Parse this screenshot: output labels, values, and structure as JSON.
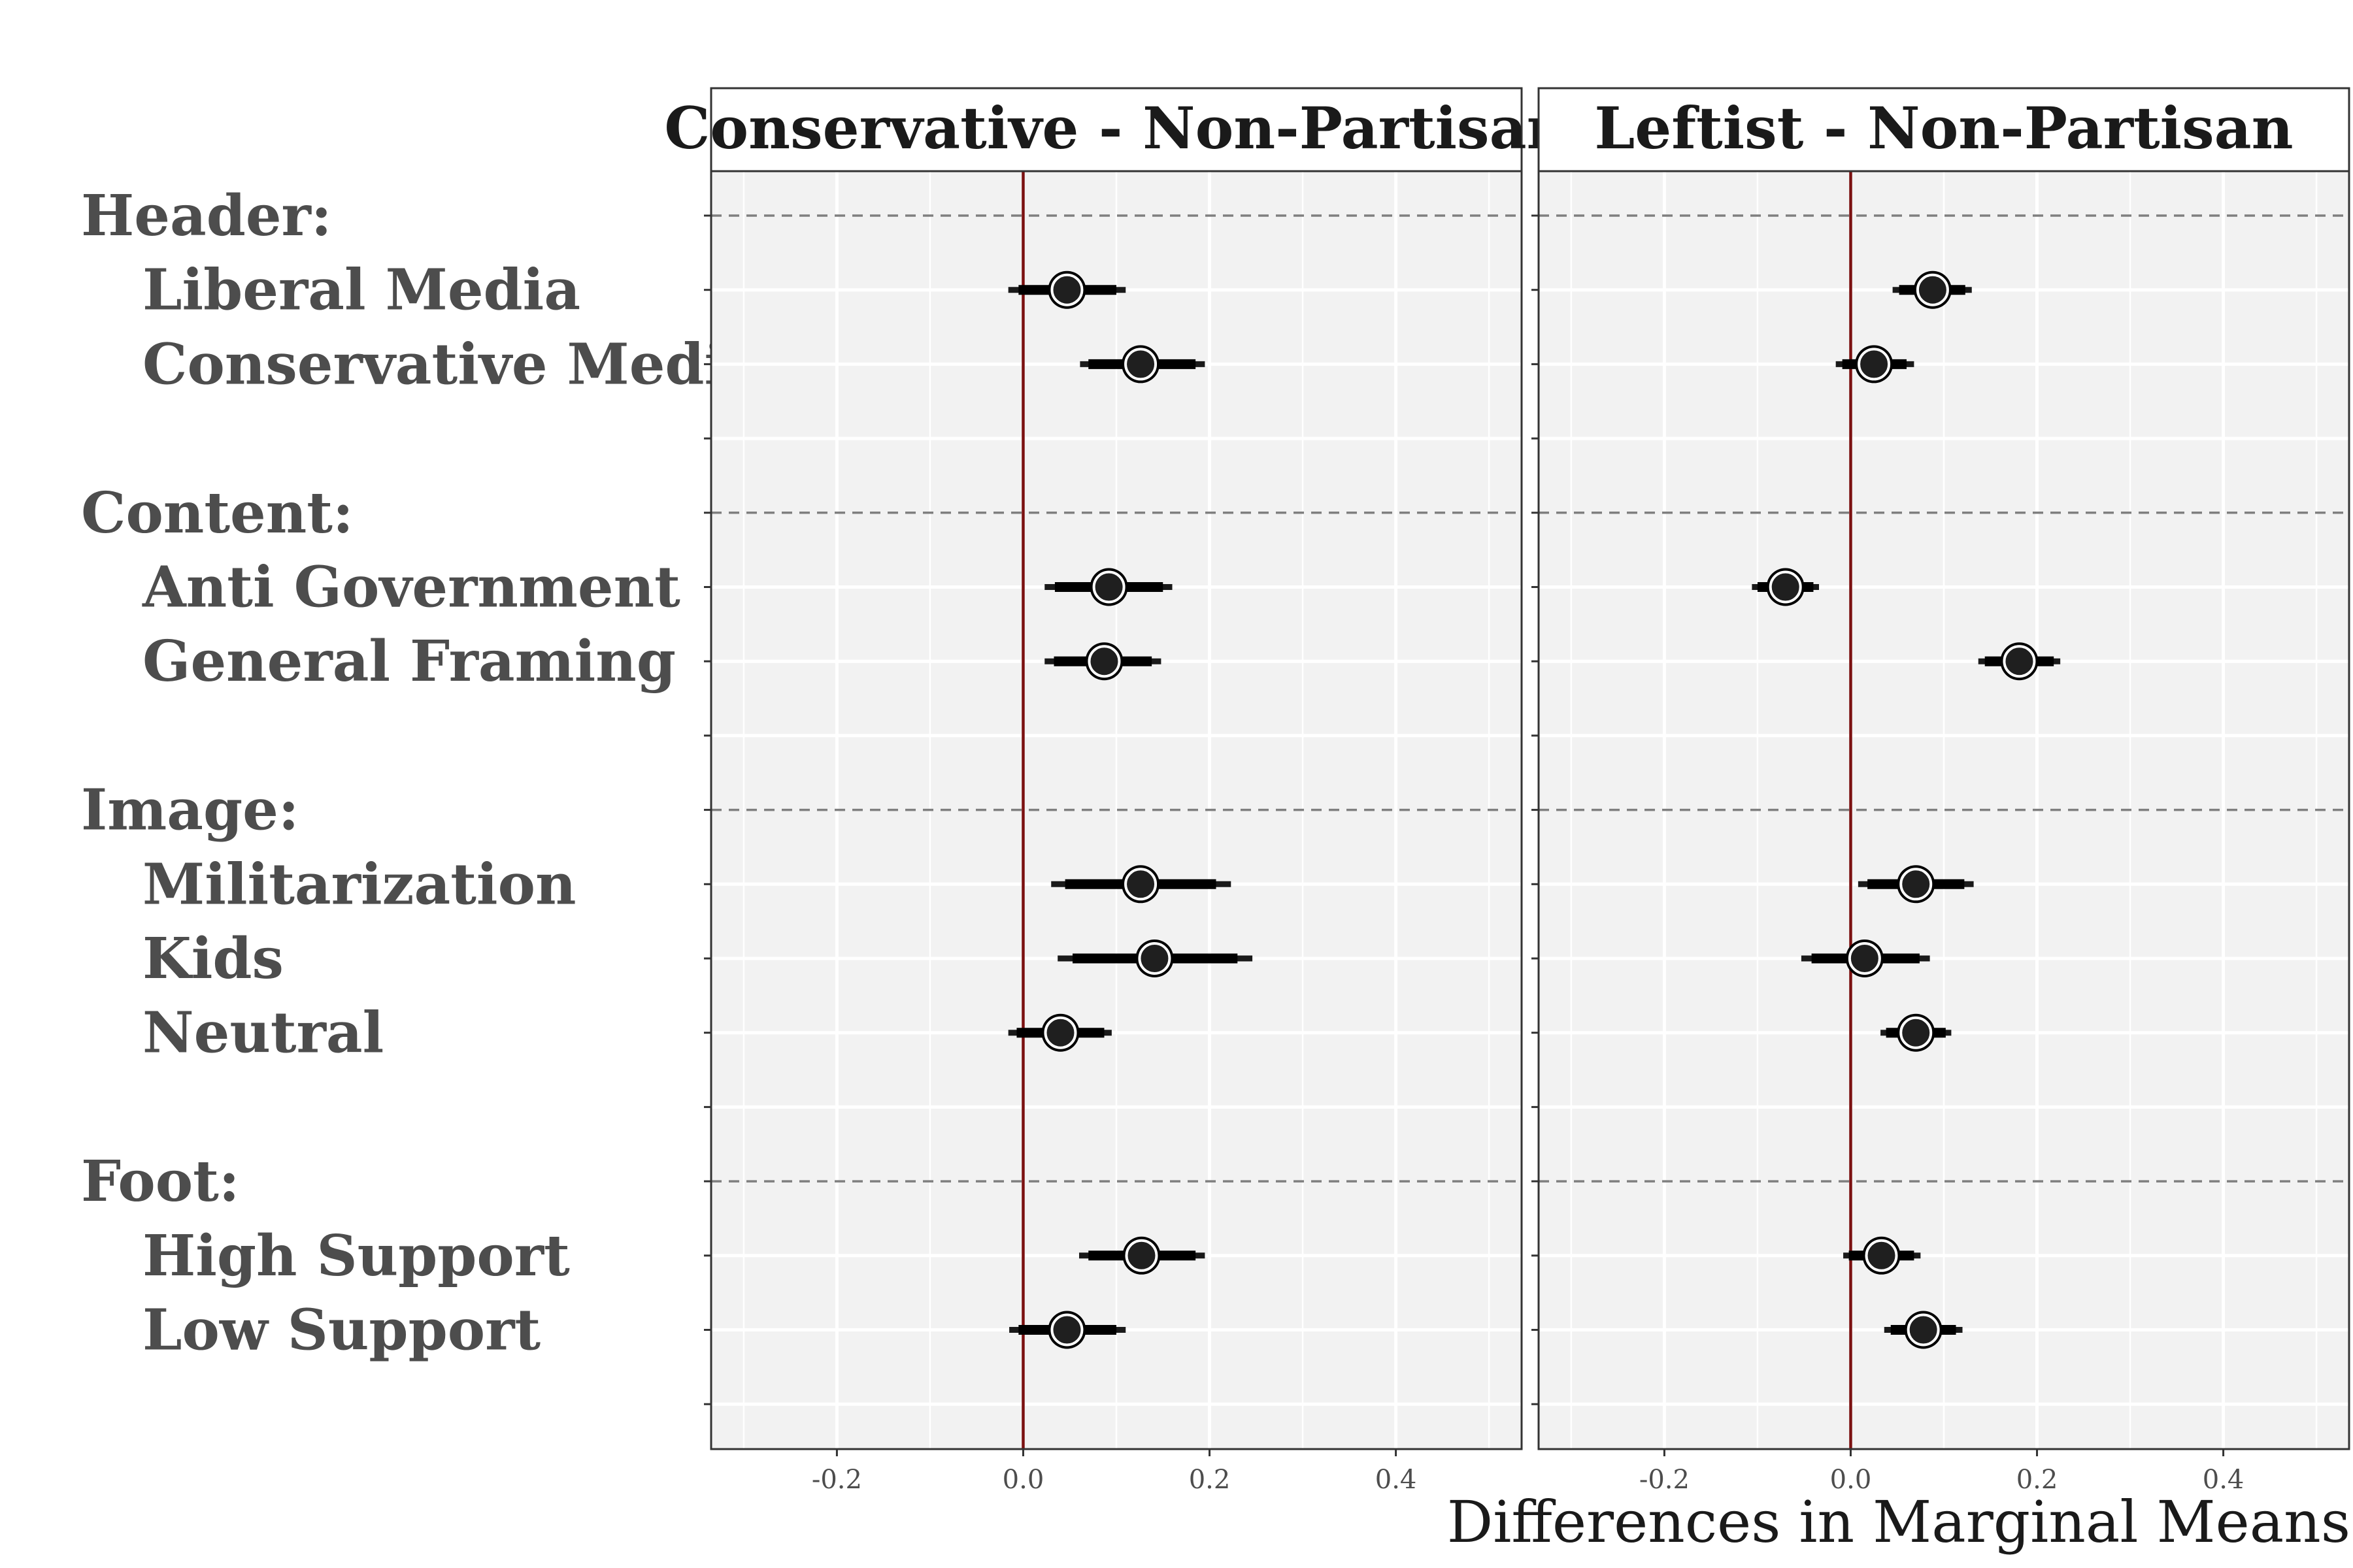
{
  "chart_data": {
    "type": "scatter",
    "xlabel": "Differences in Marginal Means",
    "xlim": [
      -0.335,
      0.535
    ],
    "x_ticks": [
      "-0.2",
      "0.0",
      "0.2",
      "0.4"
    ],
    "x_tick_values": [
      -0.2,
      0.0,
      0.2,
      0.4
    ],
    "reference_line": 0,
    "rows": [
      {
        "label": "Header:",
        "kind": "group"
      },
      {
        "label": "Liberal Media",
        "kind": "level"
      },
      {
        "label": "Conservative Media",
        "kind": "level"
      },
      {
        "label": "",
        "kind": "spacer"
      },
      {
        "label": "Content:",
        "kind": "group"
      },
      {
        "label": "Anti Government",
        "kind": "level"
      },
      {
        "label": "General Framing",
        "kind": "level"
      },
      {
        "label": "",
        "kind": "spacer"
      },
      {
        "label": "Image:",
        "kind": "group"
      },
      {
        "label": "Militarization",
        "kind": "level"
      },
      {
        "label": "Kids",
        "kind": "level"
      },
      {
        "label": "Neutral",
        "kind": "level"
      },
      {
        "label": "",
        "kind": "spacer"
      },
      {
        "label": "Foot:",
        "kind": "group"
      },
      {
        "label": "High Support",
        "kind": "level"
      },
      {
        "label": "Low Support",
        "kind": "level"
      },
      {
        "label": "",
        "kind": "spacer"
      }
    ],
    "panels": [
      {
        "title": "Conservative - Non-Partisan",
        "estimates": [
          {
            "label": "Liberal Media",
            "estimate": 0.047,
            "ci95": [
              -0.016,
              0.11
            ],
            "ci90": [
              -0.005,
              0.1
            ]
          },
          {
            "label": "Conservative Media",
            "estimate": 0.126,
            "ci95": [
              0.061,
              0.195
            ],
            "ci90": [
              0.07,
              0.185
            ]
          },
          {
            "label": "Anti Government",
            "estimate": 0.092,
            "ci95": [
              0.023,
              0.16
            ],
            "ci90": [
              0.034,
              0.15
            ]
          },
          {
            "label": "General Framing",
            "estimate": 0.087,
            "ci95": [
              0.023,
              0.148
            ],
            "ci90": [
              0.033,
              0.138
            ]
          },
          {
            "label": "Militarization",
            "estimate": 0.126,
            "ci95": [
              0.03,
              0.223
            ],
            "ci90": [
              0.045,
              0.207
            ]
          },
          {
            "label": "Kids",
            "estimate": 0.141,
            "ci95": [
              0.037,
              0.246
            ],
            "ci90": [
              0.053,
              0.23
            ]
          },
          {
            "label": "Neutral",
            "estimate": 0.04,
            "ci95": [
              -0.016,
              0.095
            ],
            "ci90": [
              -0.007,
              0.087
            ]
          },
          {
            "label": "High Support",
            "estimate": 0.127,
            "ci95": [
              0.06,
              0.195
            ],
            "ci90": [
              0.07,
              0.185
            ]
          },
          {
            "label": "Low Support",
            "estimate": 0.047,
            "ci95": [
              -0.015,
              0.11
            ],
            "ci90": [
              -0.005,
              0.1
            ]
          }
        ]
      },
      {
        "title": "Leftist - Non-Partisan",
        "estimates": [
          {
            "label": "Liberal Media",
            "estimate": 0.088,
            "ci95": [
              0.045,
              0.13
            ],
            "ci90": [
              0.052,
              0.123
            ]
          },
          {
            "label": "Conservative Media",
            "estimate": 0.025,
            "ci95": [
              -0.016,
              0.068
            ],
            "ci90": [
              -0.009,
              0.06
            ]
          },
          {
            "label": "Anti Government",
            "estimate": -0.07,
            "ci95": [
              -0.106,
              -0.034
            ],
            "ci90": [
              -0.1,
              -0.04
            ]
          },
          {
            "label": "General Framing",
            "estimate": 0.181,
            "ci95": [
              0.137,
              0.225
            ],
            "ci90": [
              0.144,
              0.218
            ]
          },
          {
            "label": "Militarization",
            "estimate": 0.07,
            "ci95": [
              0.008,
              0.132
            ],
            "ci90": [
              0.018,
              0.122
            ]
          },
          {
            "label": "Kids",
            "estimate": 0.015,
            "ci95": [
              -0.053,
              0.085
            ],
            "ci90": [
              -0.042,
              0.074
            ]
          },
          {
            "label": "Neutral",
            "estimate": 0.07,
            "ci95": [
              0.032,
              0.108
            ],
            "ci90": [
              0.038,
              0.102
            ]
          },
          {
            "label": "High Support",
            "estimate": 0.033,
            "ci95": [
              -0.008,
              0.075
            ],
            "ci90": [
              -0.002,
              0.068
            ]
          },
          {
            "label": "Low Support",
            "estimate": 0.078,
            "ci95": [
              0.036,
              0.12
            ],
            "ci90": [
              0.043,
              0.113
            ]
          }
        ]
      }
    ]
  }
}
